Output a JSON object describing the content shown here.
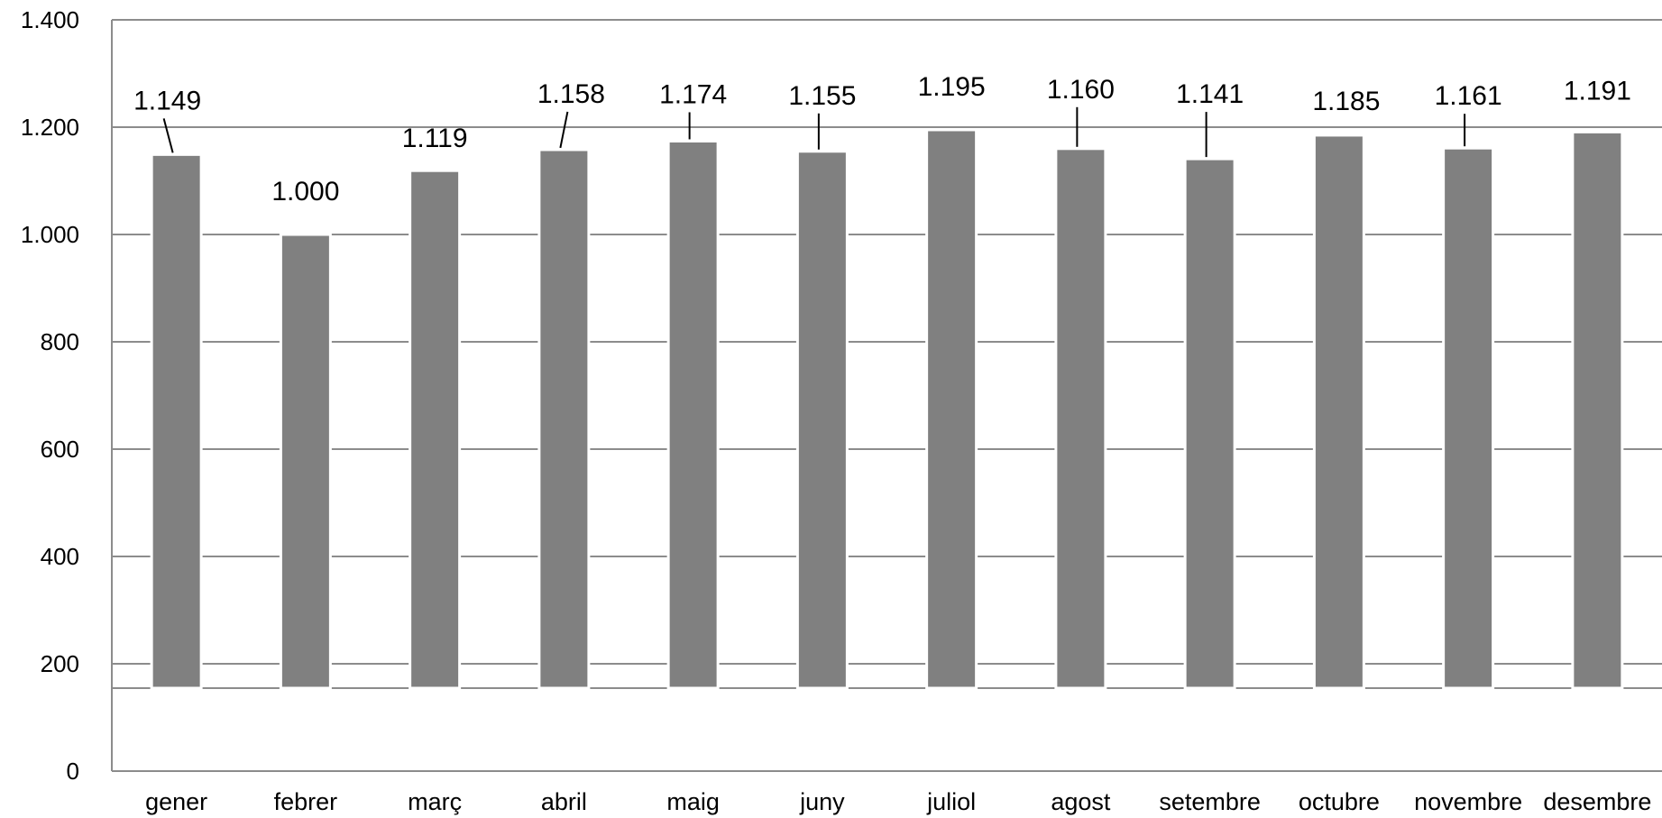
{
  "chart_data": {
    "type": "bar",
    "title": "",
    "xlabel": "",
    "ylabel": "",
    "ylim": [
      0,
      1400
    ],
    "y_ticks": [
      0,
      200,
      400,
      600,
      800,
      1000,
      1200,
      1400
    ],
    "y_tick_labels": [
      "0",
      "200",
      "400",
      "600",
      "800",
      "1.000",
      "1.200",
      "1.400"
    ],
    "categories": [
      "gener",
      "febrer",
      "març",
      "abril",
      "maig",
      "juny",
      "juliol",
      "agost",
      "setembre",
      "octubre",
      "novembre",
      "desembre"
    ],
    "values": [
      1149,
      1000,
      1119,
      1158,
      1174,
      1155,
      1195,
      1160,
      1141,
      1185,
      1161,
      1191
    ],
    "data_labels": [
      "1.149",
      "1.000",
      "1.119",
      "1.158",
      "1.174",
      "1.155",
      "1.195",
      "1.160",
      "1.141",
      "1.185",
      "1.161",
      "1.191"
    ],
    "grid": true,
    "legend": "none",
    "bar_color": "#808080",
    "grid_color": "#8c8c8c"
  }
}
